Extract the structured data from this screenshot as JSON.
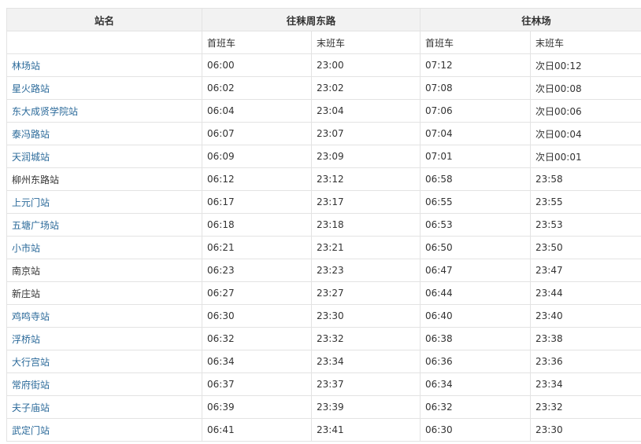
{
  "header": {
    "station": "站名",
    "dir1": "往秣周东路",
    "dir2": "往林场"
  },
  "subheader": {
    "first": "首班车",
    "last": "末班车"
  },
  "rows": [
    {
      "station": "林场站",
      "link": true,
      "d1_first": "06:00",
      "d1_last": "23:00",
      "d2_first": "07:12",
      "d2_last": "次日00:12"
    },
    {
      "station": "星火路站",
      "link": true,
      "d1_first": "06:02",
      "d1_last": "23:02",
      "d2_first": "07:08",
      "d2_last": "次日00:08"
    },
    {
      "station": "东大成贤学院站",
      "link": true,
      "d1_first": "06:04",
      "d1_last": "23:04",
      "d2_first": "07:06",
      "d2_last": "次日00:06"
    },
    {
      "station": "泰冯路站",
      "link": true,
      "d1_first": "06:07",
      "d1_last": "23:07",
      "d2_first": "07:04",
      "d2_last": "次日00:04"
    },
    {
      "station": "天润城站",
      "link": true,
      "d1_first": "06:09",
      "d1_last": "23:09",
      "d2_first": "07:01",
      "d2_last": "次日00:01"
    },
    {
      "station": "柳州东路站",
      "link": false,
      "d1_first": "06:12",
      "d1_last": "23:12",
      "d2_first": "06:58",
      "d2_last": "23:58"
    },
    {
      "station": "上元门站",
      "link": true,
      "d1_first": "06:17",
      "d1_last": "23:17",
      "d2_first": "06:55",
      "d2_last": "23:55"
    },
    {
      "station": "五塘广场站",
      "link": true,
      "d1_first": "06:18",
      "d1_last": "23:18",
      "d2_first": "06:53",
      "d2_last": "23:53"
    },
    {
      "station": "小市站",
      "link": true,
      "d1_first": "06:21",
      "d1_last": "23:21",
      "d2_first": "06:50",
      "d2_last": "23:50"
    },
    {
      "station": "南京站",
      "link": false,
      "d1_first": "06:23",
      "d1_last": "23:23",
      "d2_first": "06:47",
      "d2_last": "23:47"
    },
    {
      "station": "新庄站",
      "link": false,
      "d1_first": "06:27",
      "d1_last": "23:27",
      "d2_first": "06:44",
      "d2_last": "23:44"
    },
    {
      "station": "鸡鸣寺站",
      "link": true,
      "d1_first": "06:30",
      "d1_last": "23:30",
      "d2_first": "06:40",
      "d2_last": "23:40"
    },
    {
      "station": "浮桥站",
      "link": true,
      "d1_first": "06:32",
      "d1_last": "23:32",
      "d2_first": "06:38",
      "d2_last": "23:38"
    },
    {
      "station": "大行宫站",
      "link": true,
      "d1_first": "06:34",
      "d1_last": "23:34",
      "d2_first": "06:36",
      "d2_last": "23:36"
    },
    {
      "station": "常府街站",
      "link": true,
      "d1_first": "06:37",
      "d1_last": "23:37",
      "d2_first": "06:34",
      "d2_last": "23:34"
    },
    {
      "station": "夫子庙站",
      "link": true,
      "d1_first": "06:39",
      "d1_last": "23:39",
      "d2_first": "06:32",
      "d2_last": "23:32"
    },
    {
      "station": "武定门站",
      "link": true,
      "d1_first": "06:41",
      "d1_last": "23:41",
      "d2_first": "06:30",
      "d2_last": "23:30"
    }
  ],
  "colors": {
    "link": "#2b6a9a",
    "header_bg": "#f2f2f2",
    "border": "#e3e3e3"
  }
}
